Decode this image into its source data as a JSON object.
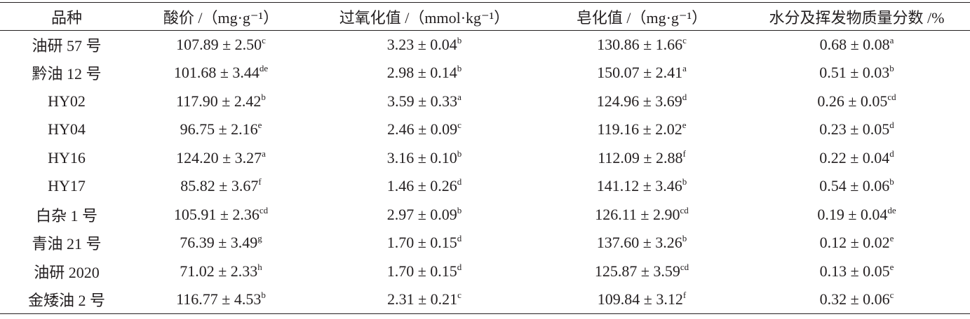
{
  "table": {
    "header": [
      "品种",
      "酸价 /（mg·g⁻¹）",
      "过氧化值 /（mmol·kg⁻¹）",
      "皂化值 /（mg·g⁻¹）",
      "水分及挥发物质量分数 /%"
    ],
    "rows": [
      [
        "油研 57 号",
        {
          "text": "107.89 ± 2.50",
          "sig": "c"
        },
        {
          "text": "3.23 ± 0.04",
          "sig": "b"
        },
        {
          "text": "130.86 ± 1.66",
          "sig": "c"
        },
        {
          "text": "0.68 ± 0.08",
          "sig": "a"
        }
      ],
      [
        "黔油 12 号",
        {
          "text": "101.68 ± 3.44",
          "sig": "de"
        },
        {
          "text": "2.98 ± 0.14",
          "sig": "b"
        },
        {
          "text": "150.07 ± 2.41",
          "sig": "a"
        },
        {
          "text": "0.51 ± 0.03",
          "sig": "b"
        }
      ],
      [
        "HY02",
        {
          "text": "117.90 ± 2.42",
          "sig": "b"
        },
        {
          "text": "3.59 ± 0.33",
          "sig": "a"
        },
        {
          "text": "124.96 ± 3.69",
          "sig": "d"
        },
        {
          "text": "0.26 ± 0.05",
          "sig": "cd"
        }
      ],
      [
        "HY04",
        {
          "text": "96.75 ± 2.16",
          "sig": "e"
        },
        {
          "text": "2.46 ± 0.09",
          "sig": "c"
        },
        {
          "text": "119.16 ± 2.02",
          "sig": "e"
        },
        {
          "text": "0.23 ± 0.05",
          "sig": "d"
        }
      ],
      [
        "HY16",
        {
          "text": "124.20 ± 3.27",
          "sig": "a"
        },
        {
          "text": "3.16 ± 0.10",
          "sig": "b"
        },
        {
          "text": "112.09 ± 2.88",
          "sig": "f"
        },
        {
          "text": "0.22 ± 0.04",
          "sig": "d"
        }
      ],
      [
        "HY17",
        {
          "text": "85.82 ± 3.67",
          "sig": "f"
        },
        {
          "text": "1.46 ± 0.26",
          "sig": "d"
        },
        {
          "text": "141.12 ± 3.46",
          "sig": "b"
        },
        {
          "text": "0.54 ± 0.06",
          "sig": "b"
        }
      ],
      [
        "白杂 1 号",
        {
          "text": "105.91 ± 2.36",
          "sig": "cd"
        },
        {
          "text": "2.97 ± 0.09",
          "sig": "b"
        },
        {
          "text": "126.11 ± 2.90",
          "sig": "cd"
        },
        {
          "text": "0.19 ± 0.04",
          "sig": "de"
        }
      ],
      [
        "青油 21 号",
        {
          "text": "76.39 ± 3.49",
          "sig": "g"
        },
        {
          "text": "1.70 ± 0.15",
          "sig": "d"
        },
        {
          "text": "137.60 ± 3.26",
          "sig": "b"
        },
        {
          "text": "0.12 ± 0.02",
          "sig": "e"
        }
      ],
      [
        "油研 2020",
        {
          "text": "71.02 ± 2.33",
          "sig": "h"
        },
        {
          "text": "1.70 ± 0.15",
          "sig": "d"
        },
        {
          "text": "125.87 ± 3.59",
          "sig": "cd"
        },
        {
          "text": "0.13 ± 0.05",
          "sig": "e"
        }
      ],
      [
        "金矮油 2 号",
        {
          "text": "116.77 ± 4.53",
          "sig": "b"
        },
        {
          "text": "2.31 ± 0.21",
          "sig": "c"
        },
        {
          "text": "109.84 ± 3.12",
          "sig": "f"
        },
        {
          "text": "0.32 ± 0.06",
          "sig": "c"
        }
      ]
    ]
  }
}
